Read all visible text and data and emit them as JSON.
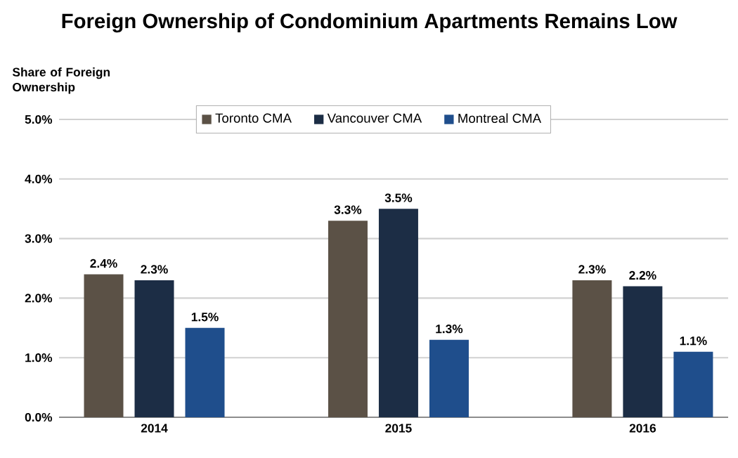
{
  "chart_data": {
    "type": "bar",
    "title": "Foreign Ownership of Condominium Apartments Remains Low",
    "ylabel": "Share of Foreign Ownership",
    "categories": [
      "2014",
      "2015",
      "2016"
    ],
    "series": [
      {
        "name": "Toronto CMA",
        "color": "#5b5146",
        "values": [
          2.4,
          3.3,
          2.3
        ],
        "value_labels": [
          "2.4%",
          "3.3%",
          "2.3%"
        ]
      },
      {
        "name": "Vancouver CMA",
        "color": "#1c2d45",
        "values": [
          2.3,
          3.5,
          2.2
        ],
        "value_labels": [
          "2.3%",
          "3.5%",
          "2.2%"
        ]
      },
      {
        "name": "Montreal CMA",
        "color": "#1f4e8c",
        "values": [
          1.5,
          1.3,
          1.1
        ],
        "value_labels": [
          "1.5%",
          "1.3%",
          "1.1%"
        ]
      }
    ],
    "ylim": [
      0,
      5
    ],
    "yticks": [
      {
        "value": 0,
        "label": "0.0%"
      },
      {
        "value": 1,
        "label": "1.0%"
      },
      {
        "value": 2,
        "label": "2.0%"
      },
      {
        "value": 3,
        "label": "3.0%"
      },
      {
        "value": 4,
        "label": "4.0%"
      },
      {
        "value": 5,
        "label": "5.0%"
      }
    ],
    "legend": "top",
    "grid": "y"
  }
}
